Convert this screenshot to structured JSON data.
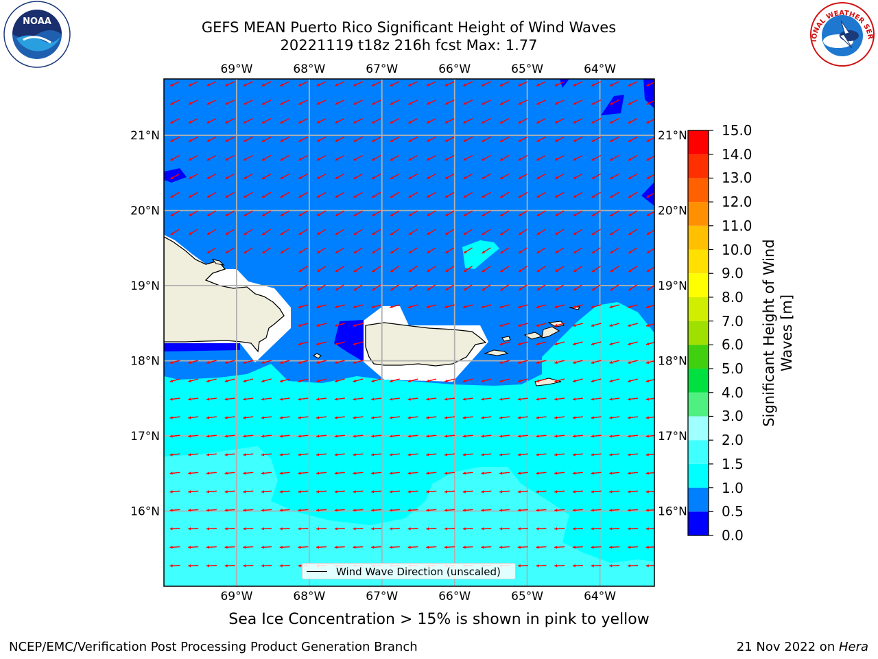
{
  "header": {
    "title_line1": "GEFS MEAN Puerto Rico Significant Height of Wind Waves",
    "title_line2": "20221119 t18z 216h fcst   Max: 1.77"
  },
  "logos": {
    "left": "noaa-logo",
    "left_text": "NOAA",
    "right": "nws-logo",
    "right_text": "NATIONAL WEATHER SERVICE"
  },
  "map": {
    "lon_range": [
      -70.0,
      -63.25
    ],
    "lat_range": [
      15.0,
      21.75
    ],
    "lon_ticks": [
      {
        "value": -69,
        "label": "69°W"
      },
      {
        "value": -68,
        "label": "68°W"
      },
      {
        "value": -67,
        "label": "67°W"
      },
      {
        "value": -66,
        "label": "66°W"
      },
      {
        "value": -65,
        "label": "65°W"
      },
      {
        "value": -64,
        "label": "64°W"
      }
    ],
    "lat_ticks": [
      {
        "value": 21,
        "label": "21°N"
      },
      {
        "value": 20,
        "label": "20°N"
      },
      {
        "value": 19,
        "label": "19°N"
      },
      {
        "value": 18,
        "label": "18°N"
      },
      {
        "value": 17,
        "label": "17°N"
      },
      {
        "value": 16,
        "label": "16°N"
      }
    ],
    "colors": {
      "ocean_0_5_1_0": "#0080ff",
      "ocean_1_0_1_5": "#00ffff",
      "ocean_1_5_2_0": "#40ffff",
      "ocean_0_0_0_5": "#0000ff",
      "land": "#f0eedc",
      "arrow": "#ff0000",
      "grid": "#b0b0b0"
    }
  },
  "legend": {
    "label": "Wind Wave Direction (unscaled)"
  },
  "colorbar": {
    "title": "Significant Height of Wind Waves [m]",
    "levels": [
      "0.0",
      "0.5",
      "1.0",
      "1.5",
      "2.0",
      "3.0",
      "4.0",
      "5.0",
      "6.0",
      "7.0",
      "8.0",
      "9.0",
      "10.0",
      "11.0",
      "12.0",
      "13.0",
      "14.0",
      "15.0"
    ],
    "colors": [
      "#0000ff",
      "#0080ff",
      "#00ffff",
      "#40ffff",
      "#a0ffff",
      "#50f080",
      "#00e040",
      "#40d010",
      "#a0e000",
      "#d0ee00",
      "#ffff00",
      "#ffe000",
      "#ffc000",
      "#ff9000",
      "#ff6000",
      "#ff3000",
      "#ff0000"
    ]
  },
  "notes": {
    "sea_ice": "Sea Ice Concentration > 15% is shown in pink to yellow"
  },
  "footer": {
    "left": "NCEP/EMC/Verification Post Processing Product Generation Branch",
    "right_date": "21 Nov 2022 on ",
    "right_host": "Hera"
  }
}
